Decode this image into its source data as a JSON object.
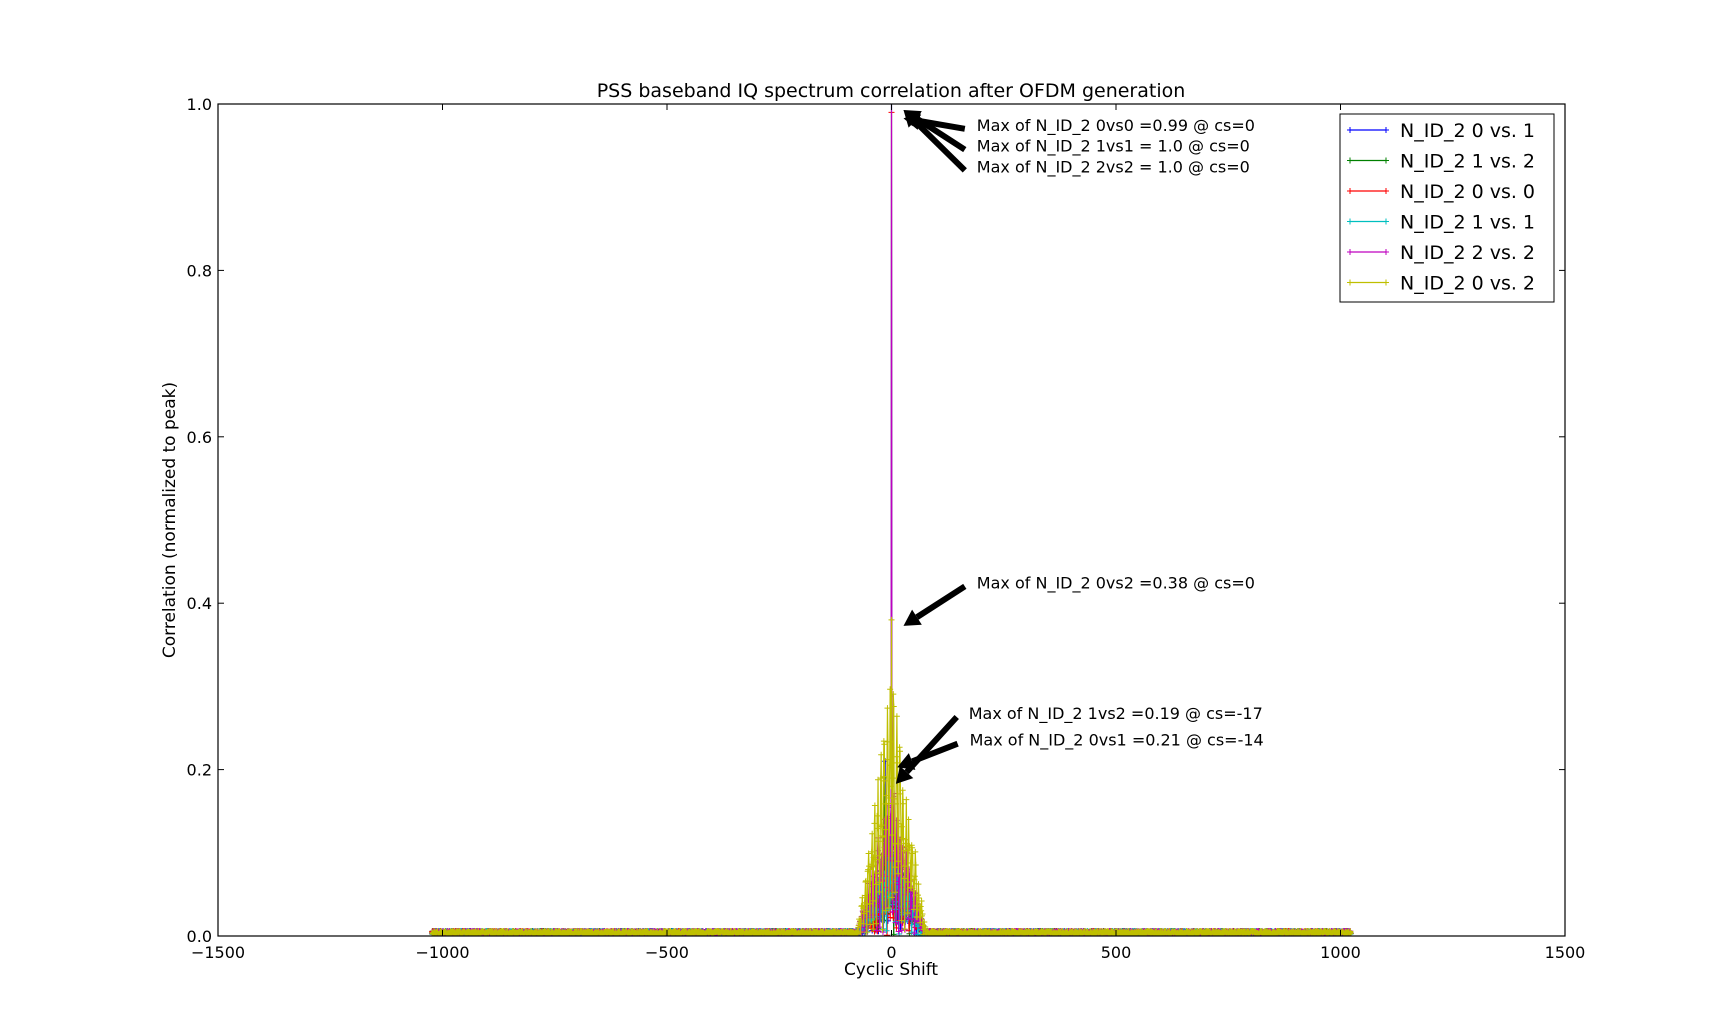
{
  "chart_data": {
    "type": "line",
    "title": "PSS baseband IQ spectrum correlation after OFDM generation",
    "xlabel": "Cyclic Shift",
    "ylabel": "Correlation (normalized to peak)",
    "xlim": [
      -1500,
      1500
    ],
    "ylim": [
      0.0,
      1.0
    ],
    "x_ticks": [
      -1500,
      -1000,
      -500,
      0,
      500,
      1000,
      1500
    ],
    "x_tick_labels": [
      "−1500",
      "−1000",
      "−500",
      "0",
      "500",
      "1000",
      "1500"
    ],
    "y_ticks": [
      0.0,
      0.2,
      0.4,
      0.6,
      0.8,
      1.0
    ],
    "y_tick_labels": [
      "0.0",
      "0.2",
      "0.4",
      "0.6",
      "0.8",
      "1.0"
    ],
    "grid": false,
    "legend_position": "top-right",
    "x_range": [
      -1023,
      1023
    ],
    "series": [
      {
        "name": "N_ID_2 0 vs. 1",
        "color": "#0000ff",
        "peak_x": -14,
        "peak_y": 0.21,
        "lobe": 0.13,
        "noise": 0.004,
        "phase": 1
      },
      {
        "name": "N_ID_2 1 vs. 2",
        "color": "#008000",
        "peak_x": -17,
        "peak_y": 0.19,
        "lobe": 0.14,
        "noise": 0.004,
        "phase": 2
      },
      {
        "name": "N_ID_2 0 vs. 0",
        "color": "#ff0000",
        "peak_x": 0,
        "peak_y": 0.99,
        "lobe": 0.11,
        "noise": 0.004,
        "phase": 3
      },
      {
        "name": "N_ID_2 1 vs. 1",
        "color": "#00bfbf",
        "peak_x": 0,
        "peak_y": 1.0,
        "lobe": 0.12,
        "noise": 0.004,
        "phase": 4
      },
      {
        "name": "N_ID_2 2 vs. 2",
        "color": "#bf00bf",
        "peak_x": 0,
        "peak_y": 1.0,
        "lobe": 0.19,
        "noise": 0.004,
        "phase": 5
      },
      {
        "name": "N_ID_2 0 vs. 2",
        "color": "#bfbf00",
        "peak_x": 0,
        "peak_y": 0.38,
        "lobe": 0.32,
        "noise": 0.004,
        "phase": 6
      }
    ],
    "annotations": [
      {
        "text": "Max of N_ID_2 0vs0 =0.99 @ cs=0",
        "x": 0,
        "y": 0.99,
        "text_x": 190,
        "text_y": 0.975
      },
      {
        "text": "Max of N_ID_2 1vs1 = 1.0 @ cs=0",
        "x": 0,
        "y": 1.0,
        "text_x": 190,
        "text_y": 0.95
      },
      {
        "text": "Max of N_ID_2 2vs2 = 1.0 @ cs=0",
        "x": 0,
        "y": 1.0,
        "text_x": 190,
        "text_y": 0.925
      },
      {
        "text": "Max of N_ID_2 0vs2 =0.38 @ cs=0",
        "x": 0,
        "y": 0.38,
        "text_x": 190,
        "text_y": 0.425
      },
      {
        "text": "Max of N_ID_2 1vs2 =0.19 @ cs=-17",
        "x": -17,
        "y": 0.19,
        "text_x": 172,
        "text_y": 0.268
      },
      {
        "text": "Max of N_ID_2 0vs1 =0.21 @ cs=-14",
        "x": -14,
        "y": 0.21,
        "text_x": 174,
        "text_y": 0.236
      }
    ]
  }
}
